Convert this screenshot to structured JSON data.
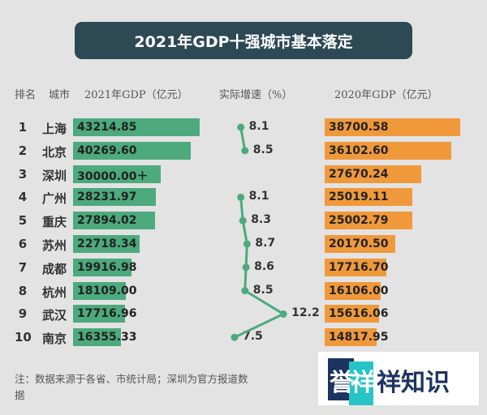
{
  "title": "2021年GDP十强城市基本落定",
  "headers": {
    "rank": "排名",
    "city": "城市",
    "gdp2021": "2021年GDP（亿元）",
    "growth": "实际增速（%）",
    "gdp2020": "2020年GDP（亿元）"
  },
  "colors": {
    "gdp2021": "#4caa7c",
    "gdp2020": "#f0993b",
    "growth": "#4caa7c",
    "title_bg": "#2d4953"
  },
  "chart_data": {
    "type": "table",
    "title": "2021年GDP十强城市基本落定",
    "categories": [
      "上海",
      "北京",
      "深圳",
      "广州",
      "重庆",
      "苏州",
      "成都",
      "杭州",
      "武汉",
      "南京"
    ],
    "ranks": [
      "1",
      "2",
      "3",
      "4",
      "5",
      "6",
      "7",
      "8",
      "9",
      "10"
    ],
    "series": [
      {
        "name": "2021年GDP（亿元）",
        "type": "bar",
        "values": [
          43214.85,
          40269.6,
          30000.0,
          28231.97,
          27894.02,
          22718.34,
          19916.98,
          18109.0,
          17716.96,
          16355.33
        ],
        "labels": [
          "43214.85",
          "40269.60",
          "30000.00＋",
          "28231.97",
          "27894.02",
          "22718.34",
          "19916.98",
          "18109.00",
          "17716.96",
          "16355.33"
        ]
      },
      {
        "name": "实际增速（%）",
        "type": "line",
        "values": [
          8.1,
          8.5,
          null,
          8.1,
          8.3,
          8.7,
          8.6,
          8.5,
          12.2,
          7.5
        ],
        "labels": [
          "8.1",
          "8.5",
          "",
          "8.1",
          "8.3",
          "8.7",
          "8.6",
          "8.5",
          "12.2",
          "7.5"
        ]
      },
      {
        "name": "2020年GDP（亿元）",
        "type": "bar",
        "values": [
          38700.58,
          36102.6,
          27670.24,
          25019.11,
          25002.79,
          20170.5,
          17716.7,
          16106.0,
          15616.06,
          14817.95
        ],
        "labels": [
          "38700.58",
          "36102.60",
          "27670.24",
          "25019.11",
          "25002.79",
          "20170.50",
          "17716.70",
          "16106.00",
          "15616.06",
          "14817.95"
        ]
      }
    ]
  },
  "note": "注：数据来源于各省、市统计局；深圳为官方报道数据",
  "logo": {
    "text": "誉祥祥知识"
  }
}
